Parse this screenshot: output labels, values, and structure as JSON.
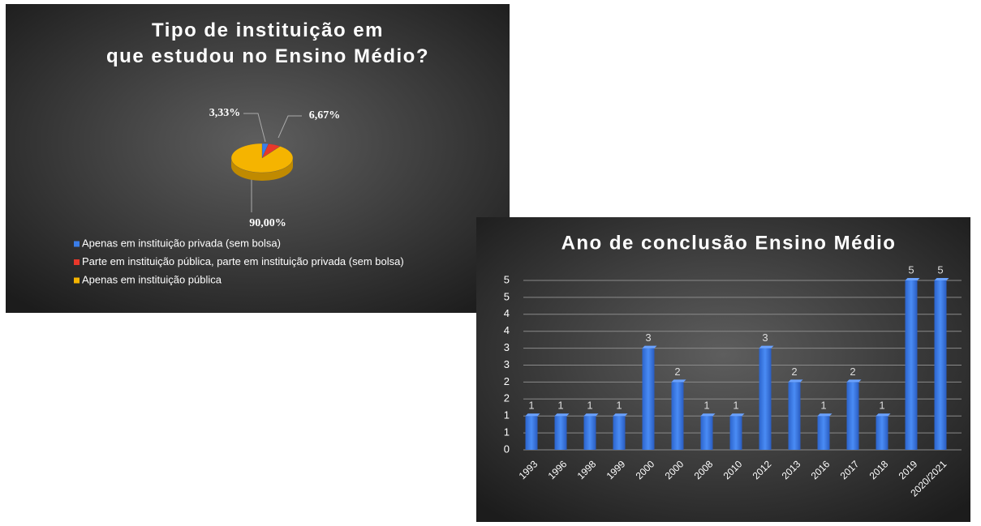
{
  "chart_data": [
    {
      "type": "pie",
      "title": "Tipo de instituição em que estudou no Ensino Médio?",
      "categories": [
        "Apenas em instituição privada (sem bolsa)",
        "Parte em instituição pública, parte em instituição privada (sem bolsa)",
        "Apenas em instituição pública"
      ],
      "values": [
        3.33,
        6.67,
        90.0
      ],
      "value_labels": [
        "3,33%",
        "6,67%",
        "90,00%"
      ],
      "colors": [
        "#3a7de8",
        "#e8372a",
        "#f5b400"
      ],
      "legend": "bottom-left"
    },
    {
      "type": "bar",
      "title": "Ano de conclusão Ensino Médio",
      "categories": [
        "1993",
        "1996",
        "1998",
        "1999",
        "2000",
        "2000",
        "2008",
        "2010",
        "2012",
        "2013",
        "2016",
        "2017",
        "2018",
        "2019",
        "2020/2021"
      ],
      "values": [
        1,
        1,
        1,
        1,
        3,
        2,
        1,
        1,
        3,
        2,
        1,
        2,
        1,
        5,
        5
      ],
      "color": "#3a7de8",
      "ylim": [
        0,
        5
      ],
      "yticks": [
        0,
        {
          "value": 0.5,
          "label": "1"
        },
        1,
        {
          "value": 1.5,
          "label": "2"
        },
        2,
        {
          "value": 2.5,
          "label": "3"
        },
        3,
        {
          "value": 3.5,
          "label": "4"
        },
        4,
        {
          "value": 4.5,
          "label": "5"
        },
        5
      ],
      "grid": true
    }
  ]
}
